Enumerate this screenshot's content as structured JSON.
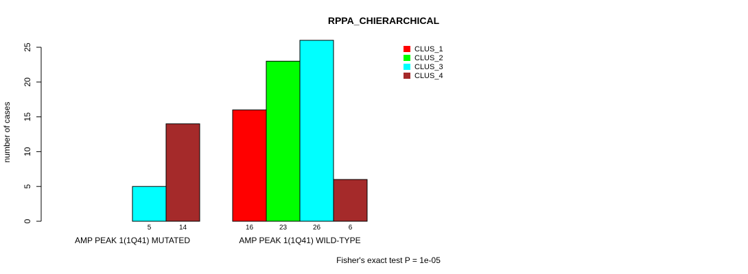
{
  "chart_data": {
    "type": "bar",
    "title": "RPPA_CHIERARCHICAL",
    "ylabel": "number of cases",
    "xlabel": "",
    "ylim": [
      0,
      25
    ],
    "yticks": [
      0,
      5,
      10,
      15,
      20,
      25
    ],
    "categories": [
      "AMP PEAK 1(1Q41) MUTATED",
      "AMP PEAK 1(1Q41) WILD-TYPE"
    ],
    "series": [
      {
        "name": "CLUS_1",
        "color": "#ff0000",
        "values": [
          0,
          16
        ]
      },
      {
        "name": "CLUS_2",
        "color": "#00ff00",
        "values": [
          0,
          23
        ]
      },
      {
        "name": "CLUS_3",
        "color": "#00ffff",
        "values": [
          5,
          26
        ]
      },
      {
        "name": "CLUS_4",
        "color": "#a52a2a",
        "values": [
          14,
          6
        ]
      }
    ],
    "bar_value_labels": [
      [
        "",
        "",
        "5",
        "14"
      ],
      [
        "16",
        "23",
        "26",
        "6"
      ]
    ],
    "legend_position": "top-right",
    "annotation": "Fisher's exact test P = 1e-05"
  }
}
